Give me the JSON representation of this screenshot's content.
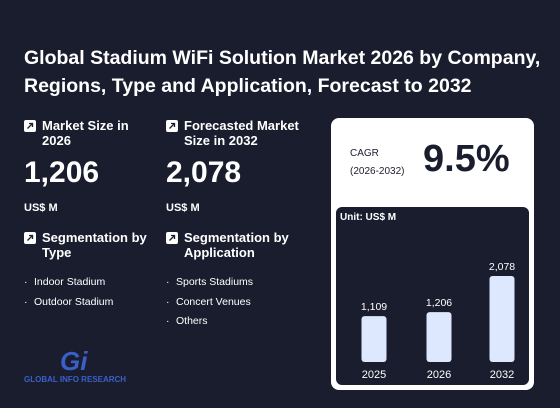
{
  "title": "Global Stadium WiFi Solution Market 2026 by Company, Regions, Type and Application, Forecast to 2032",
  "market_size": {
    "label": "Market Size in 2026",
    "value": "1,206",
    "unit": "US$ M"
  },
  "forecast_size": {
    "label": "Forecasted Market Size in 2032",
    "value": "2,078",
    "unit": "US$ M"
  },
  "segmentation_type": {
    "label": "Segmentation by Type",
    "items": [
      "Indoor Stadium",
      "Outdoor Stadium"
    ]
  },
  "segmentation_application": {
    "label": "Segmentation by Application",
    "items": [
      "Sports Stadiums",
      "Concert Venues",
      "Others"
    ]
  },
  "cagr": {
    "label_line1": "CAGR",
    "label_line2": "(2026-2032)",
    "value": "9.5%"
  },
  "logo": {
    "mark": "Gi",
    "text": "GLOBAL INFO RESEARCH"
  },
  "colors": {
    "background": "#1a1d2e",
    "bar": "#dde8ff",
    "card": "#ffffff",
    "logo_blue": "#3a5fc8",
    "logo_yellow": "#f4c20d"
  },
  "icons": {
    "stat": "arrow-up-right-icon"
  },
  "chart_data": {
    "type": "bar",
    "unit_label": "Unit: US$ M",
    "categories": [
      "2025",
      "2026",
      "2032"
    ],
    "values": [
      1109,
      1206,
      2078
    ],
    "value_labels": [
      "1,109",
      "1,206",
      "2,078"
    ],
    "ylim": [
      0,
      2078
    ],
    "grid": false
  }
}
